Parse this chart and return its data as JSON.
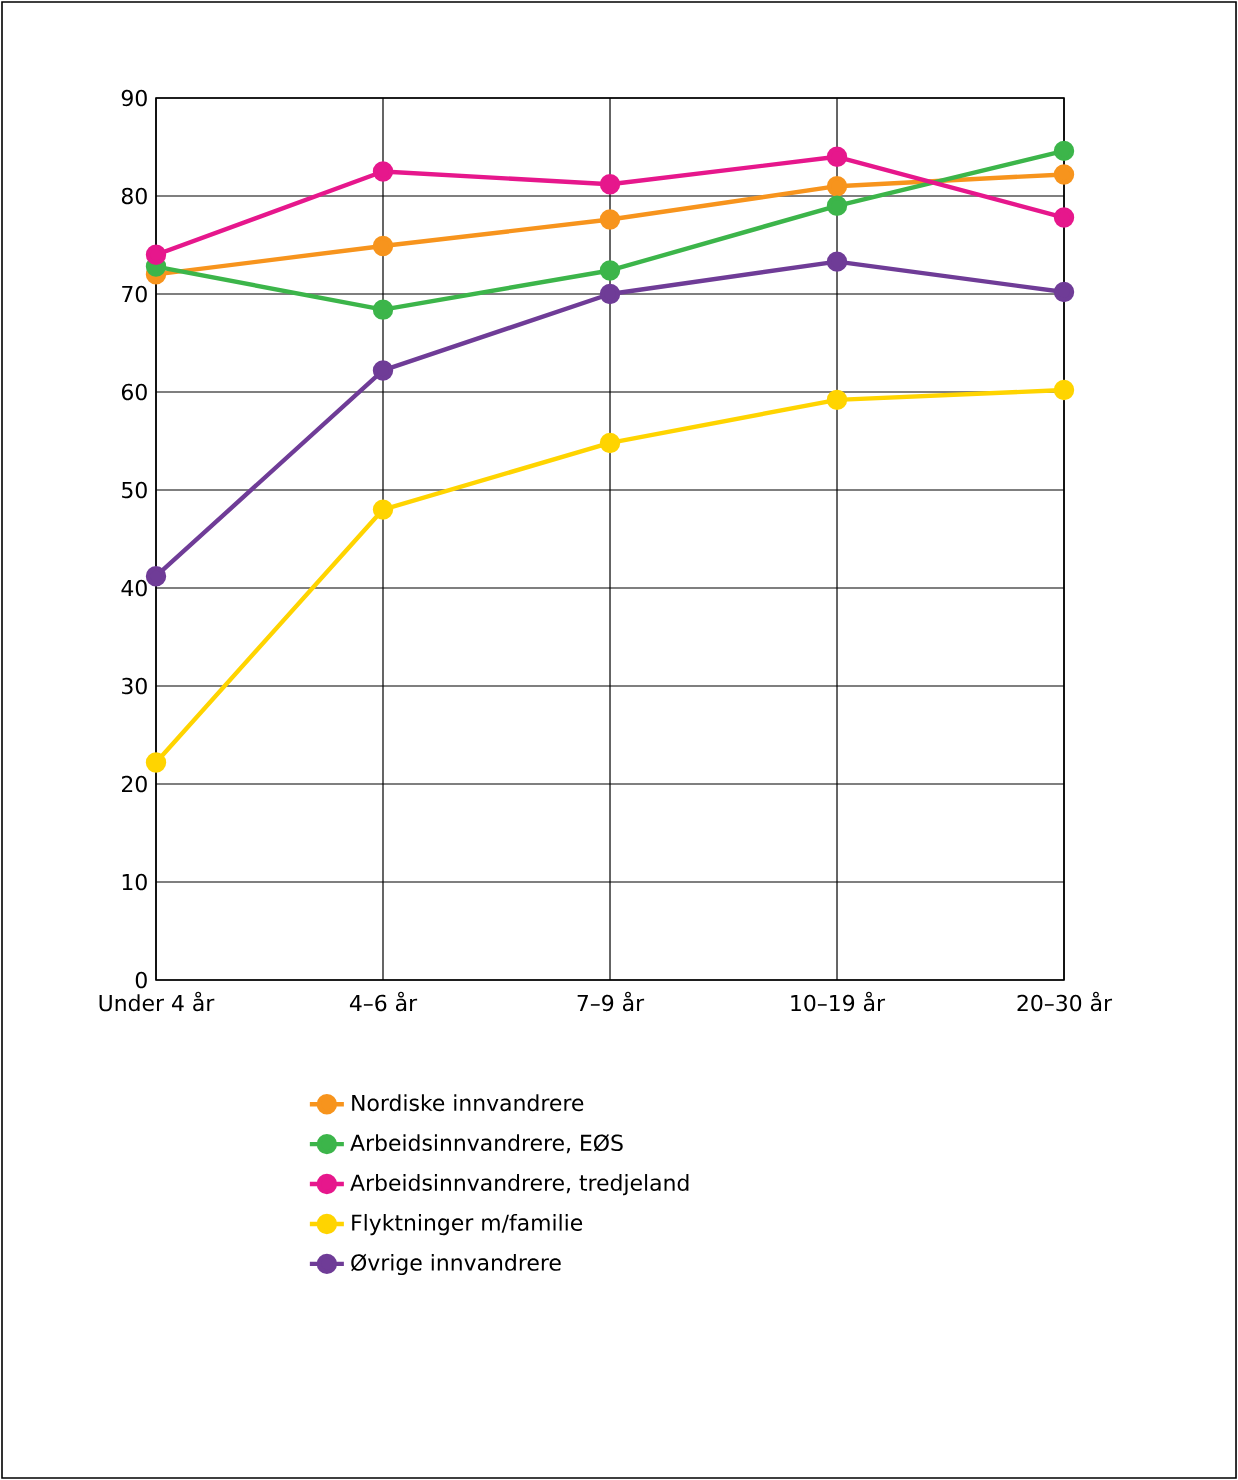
{
  "chart_data": {
    "type": "line",
    "categories": [
      "Under 4 år",
      "4–6 år",
      "7–9 år",
      "10–19 år",
      "20–30 år"
    ],
    "series": [
      {
        "name": "Nordiske innvandrere",
        "color": "#f7941d",
        "values": [
          72.0,
          74.9,
          77.6,
          81.0,
          82.2
        ]
      },
      {
        "name": "Arbeidsinnvandrere, EØS",
        "color": "#3cb54a",
        "values": [
          72.8,
          68.4,
          72.4,
          79.0,
          84.6
        ]
      },
      {
        "name": "Arbeidsinnvandrere, tredjeland",
        "color": "#e6178c",
        "values": [
          74.0,
          82.5,
          81.2,
          84.0,
          77.8
        ]
      },
      {
        "name": "Flyktninger m/familie",
        "color": "#ffd400",
        "values": [
          22.2,
          48.0,
          54.8,
          59.2,
          60.2
        ]
      },
      {
        "name": "Øvrige innvandrere",
        "color": "#6f3c97",
        "values": [
          41.2,
          62.2,
          70.0,
          73.3,
          70.2
        ]
      }
    ],
    "ylim": [
      0,
      90
    ],
    "yticks": [
      0,
      10,
      20,
      30,
      40,
      50,
      60,
      70,
      80,
      90
    ],
    "grid": true,
    "legend": "bottom",
    "marker": "circle",
    "line_style": "solid"
  }
}
